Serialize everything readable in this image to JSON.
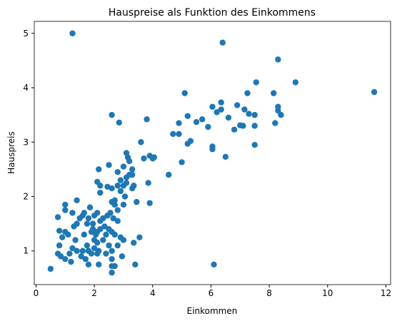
{
  "chart_data": {
    "type": "scatter",
    "title": "Hauspreise als Funktion des Einkommens",
    "x_label": "Einkommen",
    "y_label": "Hauspreis",
    "color": "#1f77b4",
    "xlim": [
      -0.06,
      12.16
    ],
    "ylim": [
      0.38,
      5.22
    ],
    "xticks": [
      0,
      2,
      4,
      6,
      8,
      10,
      12
    ],
    "yticks": [
      1,
      2,
      3,
      4,
      5
    ],
    "x": [
      1.25,
      6.4,
      11.6,
      8.9,
      8.3,
      6.1,
      3.4,
      0.5,
      2.6,
      5.1,
      5.2,
      5.5,
      5.7,
      5.9,
      6.05,
      6.35,
      6.35,
      6.6,
      6.8,
      6.9,
      7.0,
      7.1,
      7.15,
      7.25,
      7.3,
      7.5,
      7.5,
      7.5,
      7.55,
      8.15,
      8.2,
      8.3,
      8.3,
      8.4,
      4.7,
      4.9,
      4.9,
      5.0,
      5.2,
      5.3,
      6.05,
      6.05,
      6.2,
      6.5,
      4.55,
      3.8,
      3.6,
      3.9,
      4.0,
      4.05,
      3.7,
      3.85,
      3.9,
      3.55,
      3.45,
      3.35,
      2.85,
      2.6,
      2.15,
      2.5,
      2.8,
      3.1,
      3.15,
      3.2,
      3.3,
      3.0,
      2.9,
      3.0,
      3.1,
      3.2,
      3.3,
      3.05,
      3.0,
      2.9,
      2.8,
      2.6,
      2.45,
      2.2,
      2.1,
      2.2,
      3.1,
      3.3,
      3.35,
      2.7,
      2.6,
      2.7,
      2.8,
      2.55,
      2.65,
      2.8,
      2.6,
      2.7,
      2.9,
      3.0,
      2.5,
      2.6,
      2.4,
      2.6,
      2.6,
      2.7,
      2.8,
      2.95,
      2.35,
      2.4,
      2.3,
      2.2,
      2.1,
      2.05,
      2.0,
      1.95,
      1.9,
      2.0,
      2.1,
      2.15,
      1.9,
      1.8,
      1.75,
      1.6,
      1.55,
      1.7,
      1.8,
      1.65,
      1.75,
      1.6,
      1.5,
      1.4,
      1.3,
      1.35,
      1.4,
      1.25,
      1.15,
      1.2,
      1.0,
      0.85,
      0.75,
      0.8,
      0.9,
      1.0,
      0.8,
      1.1,
      0.75,
      1.0,
      1.0,
      1.25,
      1.4,
      1.65,
      1.8,
      1.85,
      2.0,
      2.2,
      2.1,
      2.3,
      1.95,
      2.45,
      2.1,
      2.5,
      2.15
    ],
    "values": [
      5.0,
      4.83,
      3.92,
      4.1,
      4.52,
      0.75,
      0.75,
      0.67,
      0.6,
      3.9,
      3.48,
      3.37,
      3.42,
      3.28,
      3.65,
      3.73,
      3.6,
      3.45,
      3.23,
      3.68,
      3.31,
      3.3,
      3.6,
      3.9,
      3.52,
      3.5,
      3.3,
      2.95,
      4.1,
      3.9,
      3.35,
      3.58,
      3.65,
      3.5,
      3.15,
      3.15,
      3.35,
      2.63,
      2.97,
      3.02,
      2.92,
      2.87,
      3.55,
      2.73,
      2.4,
      3.42,
      3.0,
      2.75,
      2.7,
      2.72,
      2.7,
      2.25,
      1.88,
      1.25,
      1.9,
      1.15,
      3.36,
      3.5,
      2.5,
      2.58,
      2.45,
      2.8,
      2.72,
      2.65,
      2.5,
      2.55,
      2.3,
      2.2,
      2.25,
      2.4,
      2.4,
      2.0,
      1.85,
      2.1,
      2.2,
      2.15,
      2.18,
      2.2,
      2.27,
      2.07,
      2.35,
      2.15,
      2.2,
      1.93,
      1.9,
      1.85,
      1.75,
      1.7,
      1.6,
      1.55,
      1.35,
      1.3,
      1.25,
      1.2,
      1.1,
      1.0,
      0.95,
      0.85,
      0.72,
      0.72,
      1.1,
      0.9,
      1.45,
      1.3,
      1.2,
      1.4,
      1.35,
      1.3,
      1.2,
      1.4,
      1.35,
      1.05,
      0.95,
      0.75,
      0.95,
      1.0,
      1.1,
      1.0,
      0.9,
      0.85,
      0.75,
      1.3,
      1.5,
      1.65,
      1.6,
      1.5,
      1.45,
      1.2,
      1.0,
      1.05,
      0.95,
      0.8,
      0.85,
      0.9,
      0.95,
      1.1,
      1.25,
      1.35,
      1.37,
      1.3,
      1.62,
      1.75,
      1.85,
      1.7,
      1.93,
      1.7,
      1.6,
      1.8,
      1.65,
      1.55,
      1.7,
      1.6,
      1.5,
      1.65,
      1.15,
      1.4,
      1.0
    ]
  }
}
